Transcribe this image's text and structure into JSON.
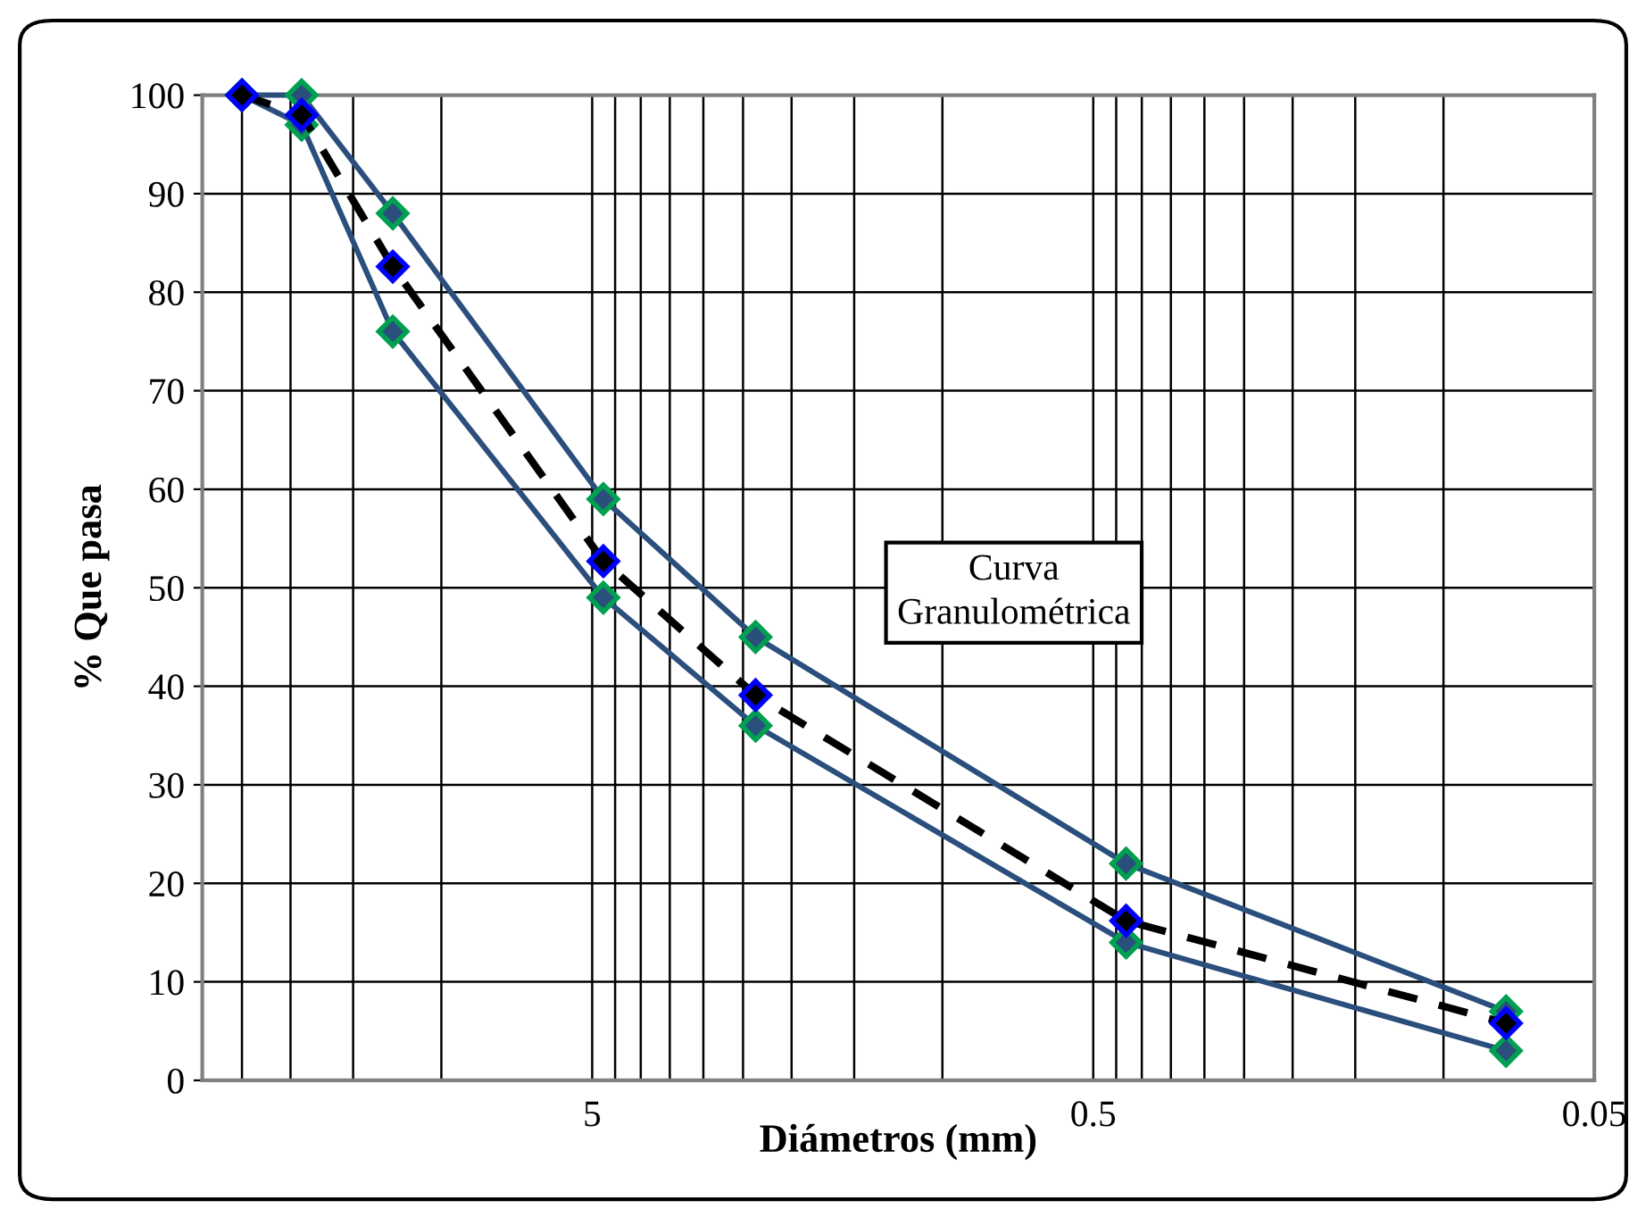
{
  "chart_data": {
    "type": "line",
    "xlabel": "Diámetros (mm)",
    "ylabel": "% Que pasa",
    "annotations": [
      "Curva\nGranulométrica"
    ],
    "log": "x",
    "xlim": [
      30,
      0.05
    ],
    "xticks": [
      {
        "value": 25,
        "label": null
      },
      {
        "value": 20,
        "label": null
      },
      {
        "value": 15,
        "label": null
      },
      {
        "value": 10,
        "label": null
      },
      5,
      {
        "value": 4.5,
        "label": null
      },
      {
        "value": 4,
        "label": null
      },
      {
        "value": 3.5,
        "label": null
      },
      {
        "value": 3,
        "label": null
      },
      {
        "value": 2.5,
        "label": null
      },
      {
        "value": 2,
        "label": null
      },
      {
        "value": 1.5,
        "label": null
      },
      {
        "value": 1,
        "label": null
      },
      0.5,
      {
        "value": 0.45,
        "label": null
      },
      {
        "value": 0.4,
        "label": null
      },
      {
        "value": 0.35,
        "label": null
      },
      {
        "value": 0.3,
        "label": null
      },
      {
        "value": 0.25,
        "label": null
      },
      {
        "value": 0.2,
        "label": null
      },
      {
        "value": 0.15,
        "label": null
      },
      {
        "value": 0.1,
        "label": null
      },
      0.05
    ],
    "ylim": [
      0,
      100
    ],
    "yticks": [
      0,
      10,
      20,
      30,
      40,
      50,
      60,
      70,
      80,
      90,
      100
    ],
    "grid": true,
    "marker": "diamond",
    "series": [
      {
        "color": "#2b4f7c",
        "line_style": "solid",
        "x": [
          25,
          19,
          12.5,
          4.75,
          2.36,
          0.43,
          0.075
        ],
        "values": [
          100,
          100,
          88,
          59,
          45,
          22,
          7
        ]
      },
      {
        "color": "#2b4f7c",
        "line_style": "solid",
        "x": [
          25,
          19,
          12.5,
          4.75,
          2.36,
          0.43,
          0.075
        ],
        "values": [
          100,
          97,
          76,
          49,
          36,
          14,
          3
        ]
      },
      {
        "color": "#000000",
        "line_style": "dashed",
        "x": [
          25,
          19,
          12.5,
          4.75,
          2.36,
          0.43,
          0.075
        ],
        "values": [
          100,
          98,
          82.6,
          52.7,
          39.1,
          16.2,
          5.8
        ]
      }
    ]
  }
}
